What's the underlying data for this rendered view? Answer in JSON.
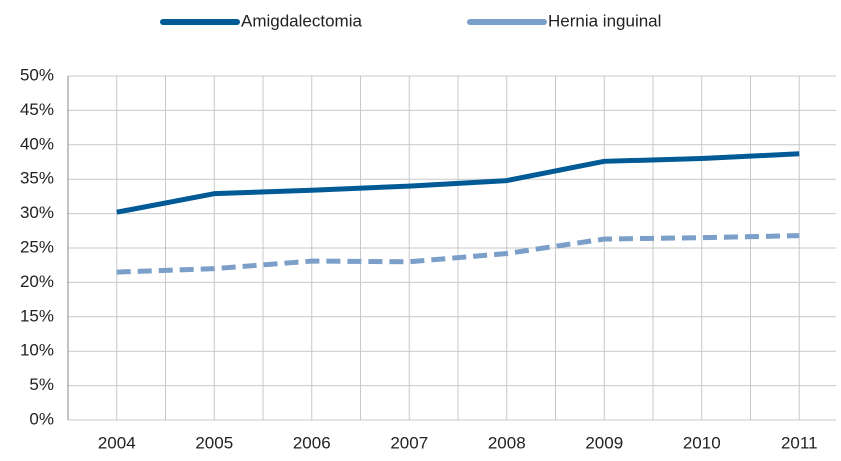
{
  "chart_data": {
    "type": "line",
    "categories": [
      "2004",
      "2005",
      "2006",
      "2007",
      "2008",
      "2009",
      "2010",
      "2011"
    ],
    "series": [
      {
        "name": "Amigdalectomia",
        "color": "#005a96",
        "dashed": false,
        "values": [
          30.2,
          32.9,
          33.4,
          34.0,
          34.8,
          37.6,
          38.0,
          38.7
        ]
      },
      {
        "name": "Hernia inguinal",
        "color": "#7b9fc9",
        "dashed": true,
        "values": [
          21.5,
          22.0,
          23.1,
          23.0,
          24.2,
          26.3,
          26.5,
          26.8
        ]
      }
    ],
    "ylim": [
      0,
      50
    ],
    "yticks": [
      {
        "value": 0,
        "label": "0%"
      },
      {
        "value": 5,
        "label": "5%"
      },
      {
        "value": 10,
        "label": "10%"
      },
      {
        "value": 15,
        "label": "15%"
      },
      {
        "value": 20,
        "label": "20%"
      },
      {
        "value": 25,
        "label": "25%"
      },
      {
        "value": 30,
        "label": "30%"
      },
      {
        "value": 35,
        "label": "35%"
      },
      {
        "value": 40,
        "label": "40%"
      },
      {
        "value": 45,
        "label": "45%"
      },
      {
        "value": 50,
        "label": "50%"
      }
    ],
    "grid": true,
    "legend": "top"
  }
}
